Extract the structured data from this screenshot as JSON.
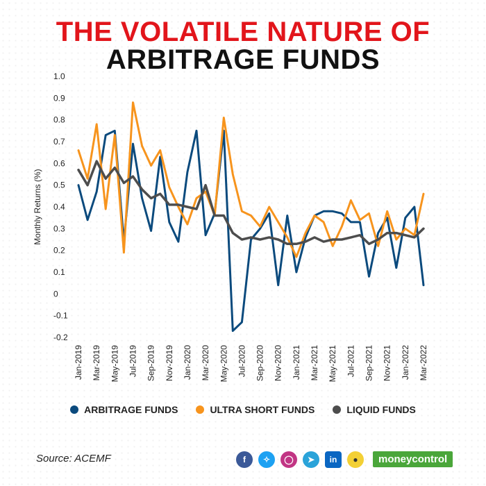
{
  "title_line1": "THE VOLATILE NATURE OF",
  "title_line2": "ARBITRAGE FUNDS",
  "source": "Source: ACEMF",
  "brand": "moneycontrol",
  "social_icons": [
    "facebook-icon",
    "twitter-icon",
    "instagram-icon",
    "telegram-icon",
    "linkedin-icon",
    "koo-icon"
  ],
  "chart_data": {
    "type": "line",
    "title": "THE VOLATILE NATURE OF ARBITRAGE FUNDS",
    "xlabel": "",
    "ylabel": "Monthly Returns (%)",
    "ylim": [
      -0.2,
      1.0
    ],
    "yticks": [
      "1.0",
      "0.9",
      "0.8",
      "0.7",
      "0.6",
      "0.5",
      "0.4",
      "0.3",
      "0.2",
      "0.1",
      "0",
      "-0.1",
      "-0.2"
    ],
    "ytick_values": [
      1.0,
      0.9,
      0.8,
      0.7,
      0.6,
      0.5,
      0.4,
      0.3,
      0.2,
      0.1,
      0,
      -0.1,
      -0.2
    ],
    "x": [
      "Jan-2019",
      "Feb-2019",
      "Mar-2019",
      "Apr-2019",
      "May-2019",
      "Jun-2019",
      "Jul-2019",
      "Aug-2019",
      "Sep-2019",
      "Oct-2019",
      "Nov-2019",
      "Dec-2019",
      "Jan-2020",
      "Feb-2020",
      "Mar-2020",
      "Apr-2020",
      "May-2020",
      "Jun-2020",
      "Jul-2020",
      "Aug-2020",
      "Sep-2020",
      "Oct-2020",
      "Nov-2020",
      "Dec-2020",
      "Jan-2021",
      "Feb-2021",
      "Mar-2021",
      "Apr-2021",
      "May-2021",
      "Jun-2021",
      "Jul-2021",
      "Aug-2021",
      "Sep-2021",
      "Oct-2021",
      "Nov-2021",
      "Dec-2021",
      "Jan-2022",
      "Feb-2022",
      "Mar-2022"
    ],
    "xtick_labels": [
      "Jan-2019",
      "Mar-2019",
      "May-2019",
      "Jul-2019",
      "Sep-2019",
      "Nov-2019",
      "Jan-2020",
      "Mar-2020",
      "May-2020",
      "Jul-2020",
      "Sep-2020",
      "Nov-2020",
      "Jan-2021",
      "Mar-2021",
      "May-2021",
      "Jul-2021",
      "Sep-2021",
      "Nov-2021",
      "Jan-2022",
      "Mar-2022"
    ],
    "legend_position": "bottom",
    "grid": false,
    "series": [
      {
        "name": "ARBITRAGE FUNDS",
        "color": "#0b4a7d",
        "values": [
          0.5,
          0.34,
          0.47,
          0.73,
          0.75,
          0.24,
          0.69,
          0.44,
          0.29,
          0.63,
          0.33,
          0.24,
          0.56,
          0.75,
          0.27,
          0.37,
          0.75,
          -0.17,
          -0.13,
          0.25,
          0.3,
          0.37,
          0.04,
          0.36,
          0.1,
          0.26,
          0.36,
          0.38,
          0.38,
          0.37,
          0.33,
          0.33,
          0.08,
          0.28,
          0.35,
          0.12,
          0.35,
          0.4,
          0.04
        ]
      },
      {
        "name": "ULTRA SHORT FUNDS",
        "color": "#f7941d",
        "values": [
          0.66,
          0.53,
          0.78,
          0.39,
          0.73,
          0.19,
          0.88,
          0.68,
          0.59,
          0.66,
          0.49,
          0.4,
          0.32,
          0.44,
          0.47,
          0.36,
          0.81,
          0.55,
          0.38,
          0.36,
          0.31,
          0.4,
          0.33,
          0.26,
          0.17,
          0.28,
          0.36,
          0.33,
          0.22,
          0.31,
          0.43,
          0.34,
          0.37,
          0.22,
          0.38,
          0.25,
          0.3,
          0.27,
          0.46
        ]
      },
      {
        "name": "LIQUID FUNDS",
        "color": "#4d4d4d",
        "values": [
          0.57,
          0.5,
          0.61,
          0.53,
          0.58,
          0.51,
          0.54,
          0.48,
          0.44,
          0.46,
          0.41,
          0.41,
          0.4,
          0.39,
          0.5,
          0.36,
          0.36,
          0.28,
          0.25,
          0.26,
          0.25,
          0.26,
          0.25,
          0.23,
          0.23,
          0.24,
          0.26,
          0.24,
          0.25,
          0.25,
          0.26,
          0.27,
          0.23,
          0.25,
          0.28,
          0.28,
          0.27,
          0.26,
          0.3
        ]
      }
    ]
  }
}
